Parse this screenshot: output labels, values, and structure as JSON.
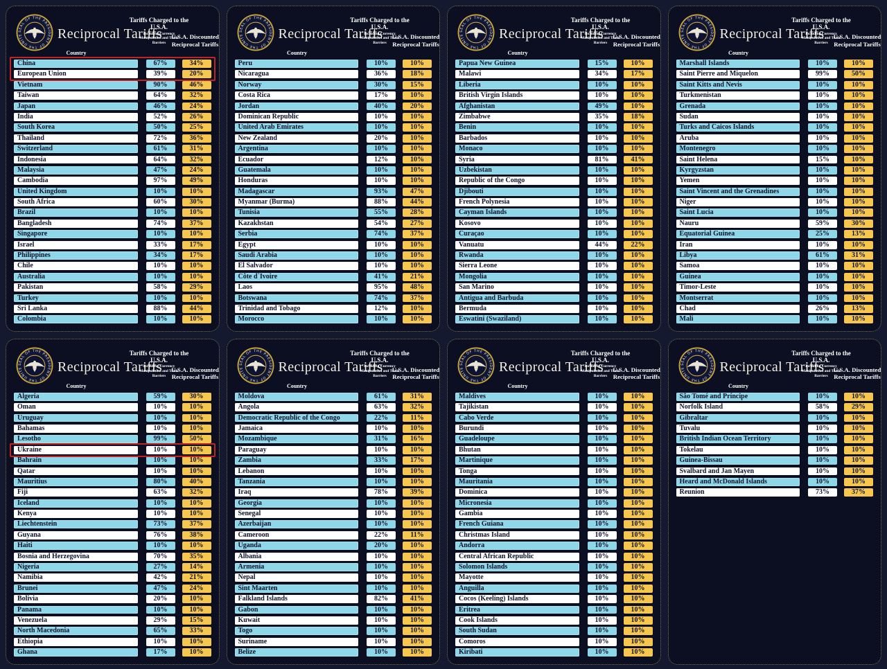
{
  "board": {
    "title": "Reciprocal Tariffs",
    "seal_text": "SEAL OF THE PRESIDENT OF THE UNITED STATES",
    "columns": {
      "country": "Country",
      "charged_main": "Tariffs Charged to the U.S.A.",
      "charged_sub": "Including Currency Manipulation and Trade Barriers",
      "discounted": "U.S.A. Discounted Reciprocal Tariffs"
    }
  },
  "colors": {
    "page_bg": "#151930",
    "panel_bg": "#0b0f21",
    "row_cyan": "#8dd7e9",
    "row_white": "#ffffff",
    "value_yellow": "#f6c64f",
    "annotation_red": "#bf2526",
    "seal_gold": "#c9a53c",
    "title_text": "#f3efe2"
  },
  "chart_data": {
    "type": "table",
    "title": "Reciprocal Tariffs",
    "columns": [
      "Country",
      "Tariffs Charged to the U.S.A. (Including Currency Manipulation and Trade Barriers)",
      "U.S.A. Discounted Reciprocal Tariffs"
    ],
    "annotations": "Red boxes drawn around China, European Union (panel 1) and Ukraine (panel 5)",
    "panels": [
      {
        "highlight_rows": [
          0,
          1
        ],
        "rows": [
          [
            "China",
            "67%",
            "34%"
          ],
          [
            "European Union",
            "39%",
            "20%"
          ],
          [
            "Vietnam",
            "90%",
            "46%"
          ],
          [
            "Taiwan",
            "64%",
            "32%"
          ],
          [
            "Japan",
            "46%",
            "24%"
          ],
          [
            "India",
            "52%",
            "26%"
          ],
          [
            "South Korea",
            "50%",
            "25%"
          ],
          [
            "Thailand",
            "72%",
            "36%"
          ],
          [
            "Switzerland",
            "61%",
            "31%"
          ],
          [
            "Indonesia",
            "64%",
            "32%"
          ],
          [
            "Malaysia",
            "47%",
            "24%"
          ],
          [
            "Cambodia",
            "97%",
            "49%"
          ],
          [
            "United Kingdom",
            "10%",
            "10%"
          ],
          [
            "South Africa",
            "60%",
            "30%"
          ],
          [
            "Brazil",
            "10%",
            "10%"
          ],
          [
            "Bangladesh",
            "74%",
            "37%"
          ],
          [
            "Singapore",
            "10%",
            "10%"
          ],
          [
            "Israel",
            "33%",
            "17%"
          ],
          [
            "Philippines",
            "34%",
            "17%"
          ],
          [
            "Chile",
            "10%",
            "10%"
          ],
          [
            "Australia",
            "10%",
            "10%"
          ],
          [
            "Pakistan",
            "58%",
            "29%"
          ],
          [
            "Turkey",
            "10%",
            "10%"
          ],
          [
            "Sri Lanka",
            "88%",
            "44%"
          ],
          [
            "Colombia",
            "10%",
            "10%"
          ]
        ]
      },
      {
        "rows": [
          [
            "Peru",
            "10%",
            "10%"
          ],
          [
            "Nicaragua",
            "36%",
            "18%"
          ],
          [
            "Norway",
            "30%",
            "15%"
          ],
          [
            "Costa Rica",
            "17%",
            "10%"
          ],
          [
            "Jordan",
            "40%",
            "20%"
          ],
          [
            "Dominican Republic",
            "10%",
            "10%"
          ],
          [
            "United Arab Emirates",
            "10%",
            "10%"
          ],
          [
            "New Zealand",
            "20%",
            "10%"
          ],
          [
            "Argentina",
            "10%",
            "10%"
          ],
          [
            "Ecuador",
            "12%",
            "10%"
          ],
          [
            "Guatemala",
            "10%",
            "10%"
          ],
          [
            "Honduras",
            "10%",
            "10%"
          ],
          [
            "Madagascar",
            "93%",
            "47%"
          ],
          [
            "Myanmar (Burma)",
            "88%",
            "44%"
          ],
          [
            "Tunisia",
            "55%",
            "28%"
          ],
          [
            "Kazakhstan",
            "54%",
            "27%"
          ],
          [
            "Serbia",
            "74%",
            "37%"
          ],
          [
            "Egypt",
            "10%",
            "10%"
          ],
          [
            "Saudi Arabia",
            "10%",
            "10%"
          ],
          [
            "El Salvador",
            "10%",
            "10%"
          ],
          [
            "Côte d`Ivoire",
            "41%",
            "21%"
          ],
          [
            "Laos",
            "95%",
            "48%"
          ],
          [
            "Botswana",
            "74%",
            "37%"
          ],
          [
            "Trinidad and Tobago",
            "12%",
            "10%"
          ],
          [
            "Morocco",
            "10%",
            "10%"
          ]
        ]
      },
      {
        "rows": [
          [
            "Papua New Guinea",
            "15%",
            "10%"
          ],
          [
            "Malawi",
            "34%",
            "17%"
          ],
          [
            "Liberia",
            "10%",
            "10%"
          ],
          [
            "British Virgin Islands",
            "10%",
            "10%"
          ],
          [
            "Afghanistan",
            "49%",
            "10%"
          ],
          [
            "Zimbabwe",
            "35%",
            "18%"
          ],
          [
            "Benin",
            "10%",
            "10%"
          ],
          [
            "Barbados",
            "10%",
            "10%"
          ],
          [
            "Monaco",
            "10%",
            "10%"
          ],
          [
            "Syria",
            "81%",
            "41%"
          ],
          [
            "Uzbekistan",
            "10%",
            "10%"
          ],
          [
            "Republic of the Congo",
            "10%",
            "10%"
          ],
          [
            "Djibouti",
            "10%",
            "10%"
          ],
          [
            "French Polynesia",
            "10%",
            "10%"
          ],
          [
            "Cayman Islands",
            "10%",
            "10%"
          ],
          [
            "Kosovo",
            "10%",
            "10%"
          ],
          [
            "Curaçao",
            "10%",
            "10%"
          ],
          [
            "Vanuatu",
            "44%",
            "22%"
          ],
          [
            "Rwanda",
            "10%",
            "10%"
          ],
          [
            "Sierra Leone",
            "10%",
            "10%"
          ],
          [
            "Mongolia",
            "10%",
            "10%"
          ],
          [
            "San Marino",
            "10%",
            "10%"
          ],
          [
            "Antigua and Barbuda",
            "10%",
            "10%"
          ],
          [
            "Bermuda",
            "10%",
            "10%"
          ],
          [
            "Eswatini (Swaziland)",
            "10%",
            "10%"
          ]
        ]
      },
      {
        "rows": [
          [
            "Marshall Islands",
            "10%",
            "10%"
          ],
          [
            "Saint Pierre and Miquelon",
            "99%",
            "50%"
          ],
          [
            "Saint Kitts and Nevis",
            "10%",
            "10%"
          ],
          [
            "Turkmenistan",
            "10%",
            "10%"
          ],
          [
            "Grenada",
            "10%",
            "10%"
          ],
          [
            "Sudan",
            "10%",
            "10%"
          ],
          [
            "Turks and Caicos Islands",
            "10%",
            "10%"
          ],
          [
            "Aruba",
            "10%",
            "10%"
          ],
          [
            "Montenegro",
            "10%",
            "10%"
          ],
          [
            "Saint Helena",
            "15%",
            "10%"
          ],
          [
            "Kyrgyzstan",
            "10%",
            "10%"
          ],
          [
            "Yemen",
            "10%",
            "10%"
          ],
          [
            "Saint Vincent and the Grenadines",
            "10%",
            "10%"
          ],
          [
            "Niger",
            "10%",
            "10%"
          ],
          [
            "Saint Lucia",
            "10%",
            "10%"
          ],
          [
            "Nauru",
            "59%",
            "30%"
          ],
          [
            "Equatorial Guinea",
            "25%",
            "13%"
          ],
          [
            "Iran",
            "10%",
            "10%"
          ],
          [
            "Libya",
            "61%",
            "31%"
          ],
          [
            "Samoa",
            "10%",
            "10%"
          ],
          [
            "Guinea",
            "10%",
            "10%"
          ],
          [
            "Timor-Leste",
            "10%",
            "10%"
          ],
          [
            "Montserrat",
            "10%",
            "10%"
          ],
          [
            "Chad",
            "26%",
            "13%"
          ],
          [
            "Mali",
            "10%",
            "10%"
          ]
        ]
      },
      {
        "highlight_rows": [
          5,
          5
        ],
        "rows": [
          [
            "Algeria",
            "59%",
            "30%"
          ],
          [
            "Oman",
            "10%",
            "10%"
          ],
          [
            "Uruguay",
            "10%",
            "10%"
          ],
          [
            "Bahamas",
            "10%",
            "10%"
          ],
          [
            "Lesotho",
            "99%",
            "50%"
          ],
          [
            "Ukraine",
            "10%",
            "10%"
          ],
          [
            "Bahrain",
            "10%",
            "10%"
          ],
          [
            "Qatar",
            "10%",
            "10%"
          ],
          [
            "Mauritius",
            "80%",
            "40%"
          ],
          [
            "Fiji",
            "63%",
            "32%"
          ],
          [
            "Iceland",
            "10%",
            "10%"
          ],
          [
            "Kenya",
            "10%",
            "10%"
          ],
          [
            "Liechtenstein",
            "73%",
            "37%"
          ],
          [
            "Guyana",
            "76%",
            "38%"
          ],
          [
            "Haiti",
            "10%",
            "10%"
          ],
          [
            "Bosnia and Herzegovina",
            "70%",
            "35%"
          ],
          [
            "Nigeria",
            "27%",
            "14%"
          ],
          [
            "Namibia",
            "42%",
            "21%"
          ],
          [
            "Brunei",
            "47%",
            "24%"
          ],
          [
            "Bolivia",
            "20%",
            "10%"
          ],
          [
            "Panama",
            "10%",
            "10%"
          ],
          [
            "Venezuela",
            "29%",
            "15%"
          ],
          [
            "North Macedonia",
            "65%",
            "33%"
          ],
          [
            "Ethiopia",
            "10%",
            "10%"
          ],
          [
            "Ghana",
            "17%",
            "10%"
          ]
        ]
      },
      {
        "rows": [
          [
            "Moldova",
            "61%",
            "31%"
          ],
          [
            "Angola",
            "63%",
            "32%"
          ],
          [
            "Democratic Republic of the Congo",
            "22%",
            "11%"
          ],
          [
            "Jamaica",
            "10%",
            "10%"
          ],
          [
            "Mozambique",
            "31%",
            "16%"
          ],
          [
            "Paraguay",
            "10%",
            "10%"
          ],
          [
            "Zambia",
            "33%",
            "17%"
          ],
          [
            "Lebanon",
            "10%",
            "10%"
          ],
          [
            "Tanzania",
            "10%",
            "10%"
          ],
          [
            "Iraq",
            "78%",
            "39%"
          ],
          [
            "Georgia",
            "10%",
            "10%"
          ],
          [
            "Senegal",
            "10%",
            "10%"
          ],
          [
            "Azerbaijan",
            "10%",
            "10%"
          ],
          [
            "Cameroon",
            "22%",
            "11%"
          ],
          [
            "Uganda",
            "20%",
            "10%"
          ],
          [
            "Albania",
            "10%",
            "10%"
          ],
          [
            "Armenia",
            "10%",
            "10%"
          ],
          [
            "Nepal",
            "10%",
            "10%"
          ],
          [
            "Sint Maarten",
            "10%",
            "10%"
          ],
          [
            "Falkland Islands",
            "82%",
            "41%"
          ],
          [
            "Gabon",
            "10%",
            "10%"
          ],
          [
            "Kuwait",
            "10%",
            "10%"
          ],
          [
            "Togo",
            "10%",
            "10%"
          ],
          [
            "Suriname",
            "10%",
            "10%"
          ],
          [
            "Belize",
            "10%",
            "10%"
          ]
        ]
      },
      {
        "rows": [
          [
            "Maldives",
            "10%",
            "10%"
          ],
          [
            "Tajikistan",
            "10%",
            "10%"
          ],
          [
            "Cabo Verde",
            "10%",
            "10%"
          ],
          [
            "Burundi",
            "10%",
            "10%"
          ],
          [
            "Guadeloupe",
            "10%",
            "10%"
          ],
          [
            "Bhutan",
            "10%",
            "10%"
          ],
          [
            "Martinique",
            "10%",
            "10%"
          ],
          [
            "Tonga",
            "10%",
            "10%"
          ],
          [
            "Mauritania",
            "10%",
            "10%"
          ],
          [
            "Dominica",
            "10%",
            "10%"
          ],
          [
            "Micronesia",
            "10%",
            "10%"
          ],
          [
            "Gambia",
            "10%",
            "10%"
          ],
          [
            "French Guiana",
            "10%",
            "10%"
          ],
          [
            "Christmas Island",
            "10%",
            "10%"
          ],
          [
            "Andorra",
            "10%",
            "10%"
          ],
          [
            "Central African Republic",
            "10%",
            "10%"
          ],
          [
            "Solomon Islands",
            "10%",
            "10%"
          ],
          [
            "Mayotte",
            "10%",
            "10%"
          ],
          [
            "Anguilla",
            "10%",
            "10%"
          ],
          [
            "Cocos (Keeling) Islands",
            "10%",
            "10%"
          ],
          [
            "Eritrea",
            "10%",
            "10%"
          ],
          [
            "Cook Islands",
            "10%",
            "10%"
          ],
          [
            "South Sudan",
            "10%",
            "10%"
          ],
          [
            "Comoros",
            "10%",
            "10%"
          ],
          [
            "Kiribati",
            "10%",
            "10%"
          ]
        ]
      },
      {
        "rows": [
          [
            "São Tomé and Príncipe",
            "10%",
            "10%"
          ],
          [
            "Norfolk Island",
            "58%",
            "29%"
          ],
          [
            "Gibraltar",
            "10%",
            "10%"
          ],
          [
            "Tuvalu",
            "10%",
            "10%"
          ],
          [
            "British Indian Ocean Territory",
            "10%",
            "10%"
          ],
          [
            "Tokelau",
            "10%",
            "10%"
          ],
          [
            "Guinea-Bissau",
            "10%",
            "10%"
          ],
          [
            "Svalbard and Jan Mayen",
            "10%",
            "10%"
          ],
          [
            "Heard and McDonald Islands",
            "10%",
            "10%"
          ],
          [
            "Reunion",
            "73%",
            "37%"
          ]
        ]
      }
    ]
  }
}
